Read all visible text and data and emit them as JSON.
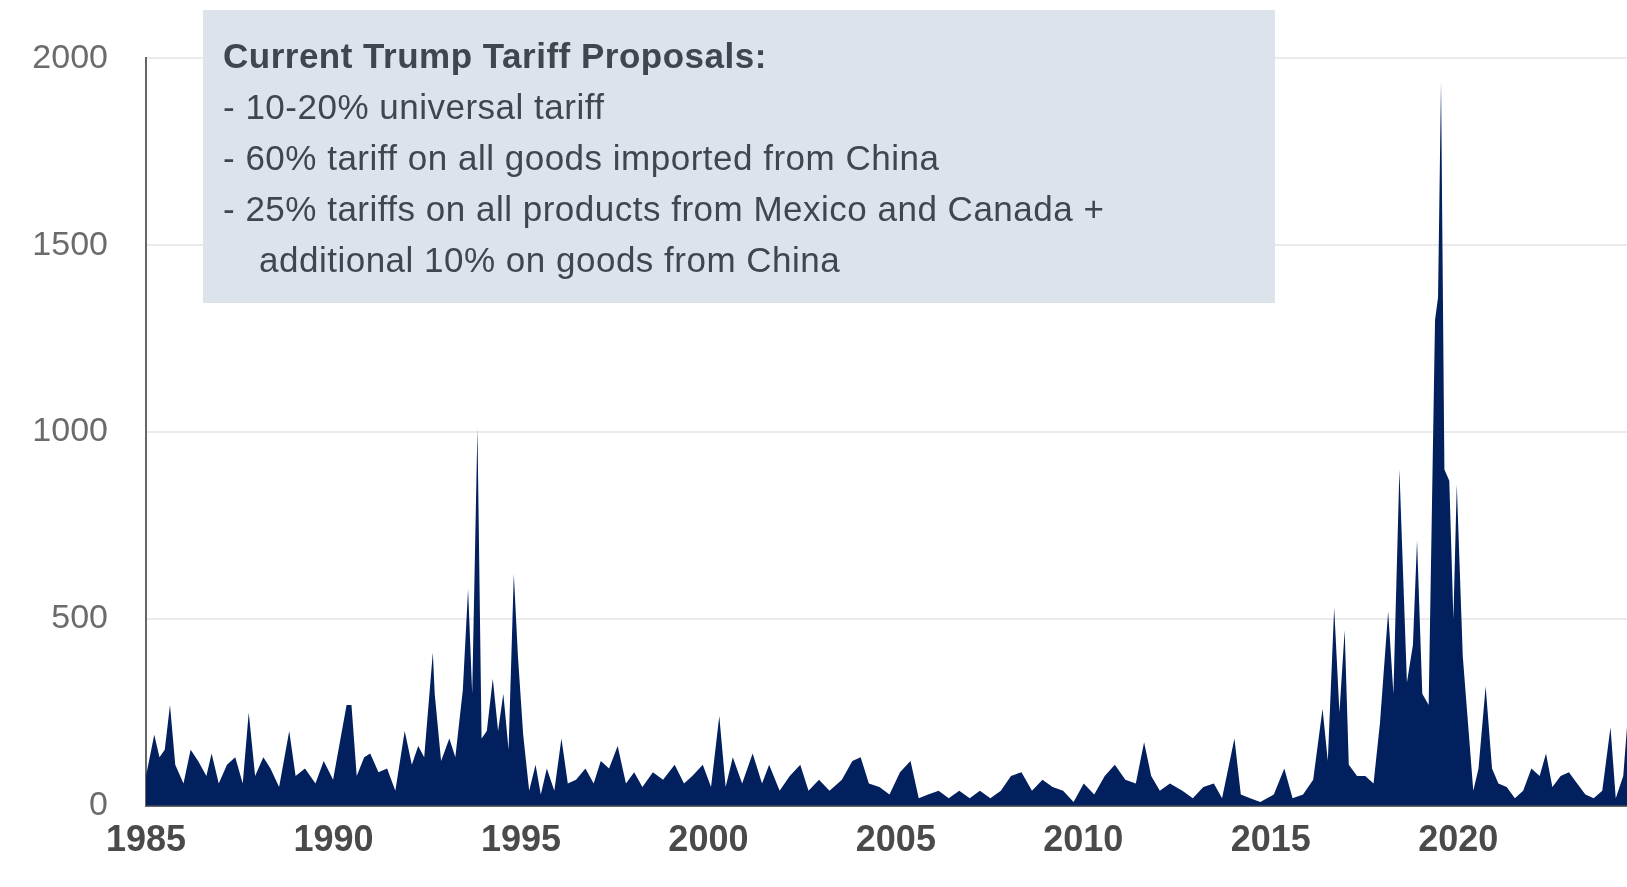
{
  "chart_data": {
    "type": "area",
    "annotations": [
      "Current Trump Tariff Proposals:",
      "- 10-20% universal tariff",
      "- 60% tariff on all goods imported from China",
      "- 25% tariffs on all products from Mexico and Canada + additional 10% on goods from China"
    ],
    "x": [
      1985.0,
      1985.22,
      1985.36,
      1985.5,
      1985.64,
      1985.78,
      1986.0,
      1986.19,
      1986.39,
      1986.61,
      1986.75,
      1986.94,
      1987.16,
      1987.38,
      1987.58,
      1987.74,
      1987.91,
      1988.13,
      1988.32,
      1988.55,
      1988.82,
      1988.99,
      1989.24,
      1989.52,
      1989.74,
      1989.99,
      1990.35,
      1990.48,
      1990.62,
      1990.82,
      1990.98,
      1991.2,
      1991.43,
      1991.65,
      1991.9,
      1992.09,
      1992.26,
      1992.42,
      1992.65,
      1992.7,
      1992.87,
      1993.09,
      1993.25,
      1993.45,
      1993.59,
      1993.7,
      1993.84,
      1993.95,
      1994.09,
      1994.25,
      1994.39,
      1994.53,
      1994.67,
      1994.81,
      1994.92,
      1995.06,
      1995.22,
      1995.39,
      1995.53,
      1995.69,
      1995.89,
      1996.08,
      1996.25,
      1996.47,
      1996.72,
      1996.94,
      1997.13,
      1997.35,
      1997.58,
      1997.8,
      1998.02,
      1998.24,
      1998.52,
      1998.79,
      1999.1,
      1999.35,
      1999.57,
      1999.85,
      2000.07,
      2000.29,
      2000.46,
      2000.65,
      2000.9,
      2001.18,
      2001.43,
      2001.62,
      2001.9,
      2002.17,
      2002.45,
      2002.67,
      2002.95,
      2003.23,
      2003.56,
      2003.84,
      2004.06,
      2004.28,
      2004.56,
      2004.83,
      2005.11,
      2005.39,
      2005.61,
      2005.86,
      2006.14,
      2006.41,
      2006.69,
      2006.97,
      2007.24,
      2007.52,
      2007.8,
      2008.07,
      2008.35,
      2008.63,
      2008.91,
      2009.18,
      2009.46,
      2009.74,
      2010.01,
      2010.29,
      2010.57,
      2010.84,
      2011.12,
      2011.4,
      2011.62,
      2011.81,
      2012.04,
      2012.31,
      2012.64,
      2012.92,
      2013.2,
      2013.48,
      2013.7,
      2014.03,
      2014.2,
      2014.45,
      2014.72,
      2015.08,
      2015.36,
      2015.58,
      2015.86,
      2016.13,
      2016.38,
      2016.52,
      2016.69,
      2016.83,
      2016.97,
      2017.08,
      2017.3,
      2017.52,
      2017.74,
      2017.91,
      2018.13,
      2018.27,
      2018.43,
      2018.63,
      2018.79,
      2018.9,
      2019.04,
      2019.21,
      2019.38,
      2019.46,
      2019.54,
      2019.63,
      2019.76,
      2019.87,
      2019.96,
      2020.12,
      2020.26,
      2020.4,
      2020.54,
      2020.73,
      2020.9,
      2021.07,
      2021.29,
      2021.51,
      2021.73,
      2021.95,
      2022.17,
      2022.34,
      2022.51,
      2022.73,
      2022.95,
      2023.17,
      2023.39,
      2023.61,
      2023.84,
      2024.06,
      2024.2,
      2024.4,
      2024.5
    ],
    "values": [
      80,
      190,
      130,
      150,
      270,
      110,
      60,
      150,
      120,
      80,
      140,
      60,
      110,
      130,
      60,
      250,
      80,
      130,
      100,
      50,
      200,
      80,
      100,
      60,
      120,
      70,
      270,
      270,
      80,
      130,
      140,
      90,
      100,
      40,
      200,
      110,
      160,
      130,
      410,
      300,
      120,
      180,
      130,
      310,
      580,
      300,
      1010,
      180,
      200,
      340,
      200,
      300,
      150,
      620,
      400,
      190,
      40,
      110,
      30,
      100,
      40,
      180,
      60,
      70,
      100,
      60,
      120,
      100,
      160,
      60,
      90,
      50,
      90,
      70,
      110,
      60,
      80,
      110,
      50,
      240,
      50,
      130,
      60,
      140,
      60,
      110,
      40,
      80,
      110,
      40,
      70,
      40,
      70,
      120,
      130,
      60,
      50,
      30,
      90,
      120,
      20,
      30,
      40,
      20,
      40,
      20,
      40,
      20,
      40,
      80,
      90,
      40,
      70,
      50,
      40,
      10,
      60,
      30,
      80,
      110,
      70,
      60,
      170,
      80,
      40,
      60,
      40,
      20,
      50,
      60,
      20,
      180,
      30,
      20,
      10,
      30,
      100,
      20,
      30,
      70,
      260,
      120,
      530,
      250,
      470,
      110,
      80,
      80,
      60,
      220,
      520,
      300,
      900,
      330,
      430,
      710,
      300,
      270,
      1300,
      1360,
      1940,
      900,
      870,
      500,
      860,
      400,
      220,
      40,
      100,
      320,
      100,
      60,
      50,
      20,
      40,
      100,
      80,
      140,
      50,
      80,
      90,
      60,
      30,
      20,
      40,
      210,
      20,
      80,
      210
    ],
    "color": "#02205e",
    "xlim": [
      1985,
      2024.5
    ],
    "xticks": [
      1985,
      1990,
      1995,
      2000,
      2005,
      2010,
      2015,
      2020
    ],
    "ylim": [
      0,
      2000
    ],
    "yticks": [
      0,
      500,
      1000,
      1500,
      2000
    ],
    "grid": "y"
  }
}
